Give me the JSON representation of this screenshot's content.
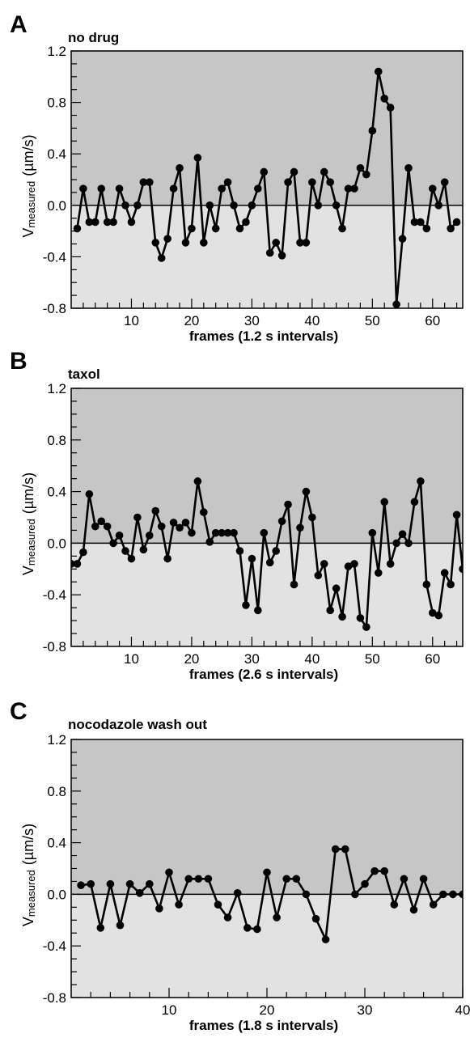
{
  "chart_data": [
    {
      "type": "line",
      "panel_letter": "A",
      "title": "no drug",
      "xlabel": "frames (1.2 s intervals)",
      "ylabel_main": "V",
      "ylabel_sub": "measured",
      "ylabel_unit": "(µm/s)",
      "xlim": [
        0,
        65
      ],
      "ylim": [
        -0.8,
        1.2
      ],
      "xticks": [
        10,
        20,
        30,
        40,
        50,
        60
      ],
      "yticks": [
        "1.2",
        "0.8",
        "0.4",
        "0.0",
        "-0.4",
        "-0.8"
      ],
      "ytick_values": [
        1.2,
        0.8,
        0.4,
        0.0,
        -0.4,
        -0.8
      ],
      "shading": {
        "above_zero": "#c6c6c6",
        "below_zero": "#e2e2e2"
      },
      "series": [
        {
          "x": [
            1,
            2,
            3,
            4,
            5,
            6,
            7,
            8,
            9,
            10,
            11,
            12,
            13,
            14,
            15,
            16,
            17,
            18,
            19,
            20,
            21,
            22,
            23,
            24,
            25,
            26,
            27,
            28,
            29,
            30,
            31,
            32,
            33,
            34,
            35,
            36,
            37,
            38,
            39,
            40,
            41,
            42,
            43,
            44,
            45,
            46,
            47,
            48,
            49,
            50,
            51,
            52,
            53,
            54,
            55,
            56,
            57,
            58,
            59,
            60,
            61,
            62,
            63,
            64
          ],
          "values": [
            -0.18,
            0.13,
            -0.13,
            -0.13,
            0.13,
            -0.13,
            -0.13,
            0.13,
            0.0,
            -0.13,
            0.0,
            0.18,
            0.18,
            -0.29,
            -0.41,
            -0.26,
            0.13,
            0.29,
            -0.29,
            -0.18,
            0.37,
            -0.29,
            0.0,
            -0.18,
            0.13,
            0.18,
            0.0,
            -0.18,
            -0.13,
            0.0,
            0.13,
            0.26,
            -0.37,
            -0.29,
            -0.39,
            0.18,
            0.26,
            -0.29,
            -0.29,
            0.18,
            0.0,
            0.26,
            0.18,
            0.0,
            -0.18,
            0.13,
            0.13,
            0.29,
            0.24,
            0.58,
            1.04,
            0.83,
            0.76,
            -0.77,
            -0.26,
            0.29,
            -0.13,
            -0.13,
            -0.18,
            0.13,
            0.0,
            0.18,
            -0.18,
            -0.13
          ]
        }
      ]
    },
    {
      "type": "line",
      "panel_letter": "B",
      "title": "taxol",
      "xlabel": "frames (2.6 s intervals)",
      "ylabel_main": "V",
      "ylabel_sub": "measured",
      "ylabel_unit": "(µm/s)",
      "xlim": [
        0,
        65
      ],
      "ylim": [
        -0.8,
        1.2
      ],
      "xticks": [
        10,
        20,
        30,
        40,
        50,
        60
      ],
      "yticks": [
        "1.2",
        "0.8",
        "0.4",
        "0.0",
        "-0.4",
        "-0.8"
      ],
      "ytick_values": [
        1.2,
        0.8,
        0.4,
        0.0,
        -0.4,
        -0.8
      ],
      "shading": {
        "above_zero": "#c6c6c6",
        "below_zero": "#e2e2e2"
      },
      "series": [
        {
          "x": [
            0,
            1,
            2,
            3,
            4,
            5,
            6,
            7,
            8,
            9,
            10,
            11,
            12,
            13,
            14,
            15,
            16,
            17,
            18,
            19,
            20,
            21,
            22,
            23,
            24,
            25,
            26,
            27,
            28,
            29,
            30,
            31,
            32,
            33,
            34,
            35,
            36,
            37,
            38,
            39,
            40,
            41,
            42,
            43,
            44,
            45,
            46,
            47,
            48,
            49,
            50,
            51,
            52,
            53,
            54,
            55,
            56,
            57,
            58,
            59,
            60,
            61,
            62,
            63,
            64,
            65
          ],
          "values": [
            -0.16,
            -0.16,
            -0.07,
            0.38,
            0.13,
            0.17,
            0.13,
            0.0,
            0.06,
            -0.06,
            -0.12,
            0.2,
            -0.05,
            0.06,
            0.25,
            0.13,
            -0.12,
            0.16,
            0.12,
            0.16,
            0.08,
            0.48,
            0.24,
            0.01,
            0.08,
            0.08,
            0.08,
            0.08,
            -0.06,
            -0.48,
            -0.12,
            -0.52,
            0.08,
            -0.15,
            -0.06,
            0.17,
            0.3,
            -0.32,
            0.12,
            0.4,
            0.2,
            -0.25,
            -0.16,
            -0.52,
            -0.35,
            -0.57,
            -0.18,
            -0.16,
            -0.58,
            -0.65,
            0.08,
            -0.23,
            0.32,
            -0.16,
            0.0,
            0.07,
            0.0,
            0.32,
            0.48,
            -0.32,
            -0.54,
            -0.56,
            -0.23,
            -0.32,
            0.22,
            -0.2
          ]
        }
      ]
    },
    {
      "type": "line",
      "panel_letter": "C",
      "title": "nocodazole wash out",
      "xlabel": "frames (1.8 s intervals)",
      "ylabel_main": "V",
      "ylabel_sub": "measured",
      "ylabel_unit": "(µm/s)",
      "xlim": [
        0,
        40
      ],
      "ylim": [
        -0.8,
        1.2
      ],
      "xticks": [
        10,
        20,
        30,
        40
      ],
      "yticks": [
        "1.2",
        "0.8",
        "0.4",
        "0.0",
        "-0.4",
        "-0.8"
      ],
      "ytick_values": [
        1.2,
        0.8,
        0.4,
        0.0,
        -0.4,
        -0.8
      ],
      "shading": {
        "above_zero": "#c6c6c6",
        "below_zero": "#e2e2e2"
      },
      "series": [
        {
          "x": [
            1,
            2,
            3,
            4,
            5,
            6,
            7,
            8,
            9,
            10,
            11,
            12,
            13,
            14,
            15,
            16,
            17,
            18,
            19,
            20,
            21,
            22,
            23,
            24,
            25,
            26,
            27,
            28,
            29,
            30,
            31,
            32,
            33,
            34,
            35,
            36,
            37,
            38,
            39,
            40
          ],
          "values": [
            0.07,
            0.08,
            -0.26,
            0.08,
            -0.24,
            0.08,
            0.01,
            0.08,
            -0.11,
            0.17,
            -0.08,
            0.12,
            0.12,
            0.12,
            -0.08,
            -0.18,
            0.01,
            -0.26,
            -0.27,
            0.17,
            -0.18,
            0.12,
            0.12,
            0.0,
            -0.19,
            -0.35,
            0.35,
            0.35,
            0.0,
            0.08,
            0.18,
            0.18,
            -0.08,
            0.12,
            -0.12,
            0.12,
            -0.08,
            0.0,
            0.0,
            0.0
          ]
        }
      ]
    }
  ]
}
